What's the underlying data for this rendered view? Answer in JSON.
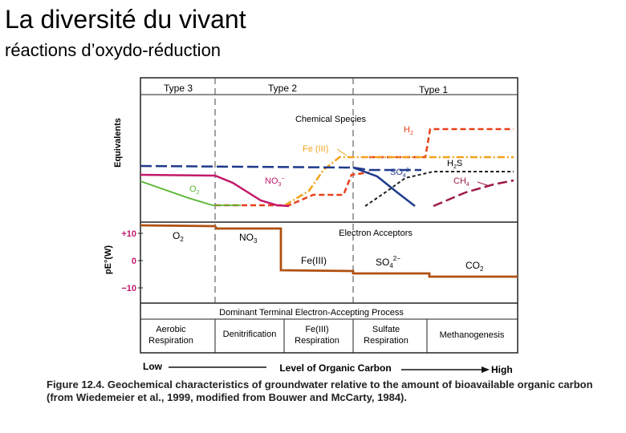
{
  "slide": {
    "title": "La diversité du vivant",
    "subtitle": "réactions d’oxydo-réduction"
  },
  "figure": {
    "zones": [
      "Type 3",
      "Type 2",
      "Type 1"
    ],
    "top_panel": {
      "ylabel": "Equivalents",
      "label": "Chemical Species",
      "species": {
        "h2": "H",
        "h2_sub": "2",
        "fe": "Fe (III)",
        "h2s": "H",
        "h2s_sub": "2",
        "h2s_s": "S",
        "so4": "SO",
        "so4_sub": "4",
        "so4_sup": "2-",
        "no3": "NO",
        "no3_sub": "3",
        "no3_sup": "−",
        "ch4": "CH",
        "ch4_sub": "4",
        "o2": "O",
        "o2_sub": "2"
      }
    },
    "bottom_panel": {
      "ylabel": "pE°(W)",
      "ticks": [
        "+10",
        "0",
        "−10"
      ],
      "label": "Electron Acceptors",
      "acceptors": {
        "o2": "O",
        "o2_sub": "2",
        "no3": "NO",
        "no3_sub": "3",
        "fe": "Fe(III)",
        "so4": "SO",
        "so4_sub": "4",
        "so4_sup": "2−",
        "co2": "CO",
        "co2_sub": "2"
      }
    },
    "process_table": {
      "header": "Dominant Terminal Electron-Accepting Process",
      "cells": [
        [
          "Aerobic",
          "Respiration"
        ],
        [
          "Denitrification"
        ],
        [
          "Fe(III)",
          "Respiration"
        ],
        [
          "Sulfate",
          "Respiration"
        ],
        [
          "Methanogenesis"
        ]
      ]
    },
    "axis": {
      "low": "Low",
      "label": "Level of Organic Carbon",
      "high": "High"
    },
    "caption": {
      "figure": "Figure 12.4.",
      "text": "Geochemical characteristics of groundwater relative to the amount of bioavailable organic carbon (from Wiedemeier et al., 1999, modified from Bouwer and McCarty, 1984)."
    },
    "colors": {
      "h2": "#e8401c",
      "fe": "#f2a21c",
      "o2": "#5ab533",
      "no3": "#c2186b",
      "so4": "#1f3a8c",
      "ch4": "#9e1b4b",
      "pe": "#b05010",
      "h2s": "#222222"
    }
  }
}
